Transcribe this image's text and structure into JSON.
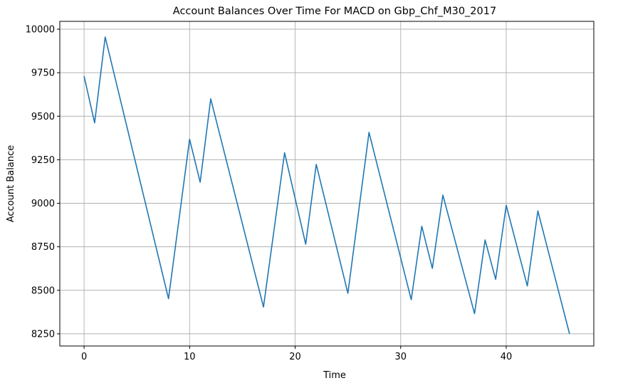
{
  "chart_data": {
    "type": "line",
    "title": "Account Balances Over Time For MACD on Gbp_Chf_M30_2017",
    "xlabel": "Time",
    "ylabel": "Account Balance",
    "xlim": [
      -2.3,
      48.3
    ],
    "ylim": [
      8180,
      10045
    ],
    "xticks": [
      0,
      10,
      20,
      30,
      40
    ],
    "yticks": [
      8250,
      8500,
      8750,
      9000,
      9250,
      9500,
      9750,
      10000
    ],
    "grid": true,
    "series": [
      {
        "color": "#1f77b4",
        "points": [
          [
            0,
            9730
          ],
          [
            1,
            9462
          ],
          [
            2,
            9955
          ],
          [
            8,
            8452
          ],
          [
            10,
            9368
          ],
          [
            11,
            9121
          ],
          [
            12,
            9600
          ],
          [
            17,
            8404
          ],
          [
            19,
            9290
          ],
          [
            21,
            8765
          ],
          [
            22,
            9223
          ],
          [
            25,
            8483
          ],
          [
            27,
            9407
          ],
          [
            31,
            8446
          ],
          [
            32,
            8868
          ],
          [
            33,
            8626
          ],
          [
            34,
            9047
          ],
          [
            37,
            8366
          ],
          [
            38,
            8789
          ],
          [
            39,
            8563
          ],
          [
            40,
            8988
          ],
          [
            42,
            8525
          ],
          [
            43,
            8956
          ],
          [
            46,
            8250
          ]
        ]
      }
    ]
  }
}
